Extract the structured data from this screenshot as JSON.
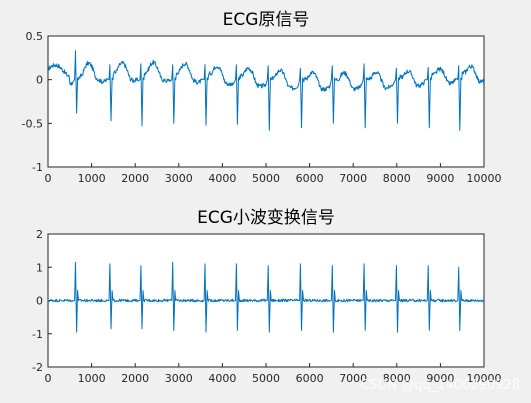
{
  "chart_data": [
    {
      "type": "line",
      "title": "ECG原信号",
      "xlabel": "",
      "ylabel": "",
      "xlim": [
        0,
        10000
      ],
      "ylim": [
        -1,
        0.5
      ],
      "xticks": [
        0,
        1000,
        2000,
        3000,
        4000,
        5000,
        6000,
        7000,
        8000,
        9000,
        10000
      ],
      "xtick_labels": [
        "0",
        "1000",
        "2000",
        "3000",
        "4000",
        "5000",
        "6000",
        "7000",
        "8000",
        "9000",
        "10000"
      ],
      "yticks": [
        0.5,
        0,
        -0.5,
        -1
      ],
      "ytick_labels": [
        "0.5",
        "0",
        "-0.5",
        "-1"
      ],
      "grid": false,
      "color": "#0072bd",
      "beats": [
        {
          "x": 640,
          "r": 0.33,
          "s": -0.38
        },
        {
          "x": 1430,
          "r": 0.17,
          "s": -0.47
        },
        {
          "x": 2140,
          "r": 0.18,
          "s": -0.53
        },
        {
          "x": 2870,
          "r": 0.17,
          "s": -0.5
        },
        {
          "x": 3610,
          "r": 0.17,
          "s": -0.52
        },
        {
          "x": 4330,
          "r": 0.17,
          "s": -0.51
        },
        {
          "x": 5060,
          "r": 0.16,
          "s": -0.58
        },
        {
          "x": 5800,
          "r": 0.13,
          "s": -0.55
        },
        {
          "x": 6530,
          "r": 0.16,
          "s": -0.5
        },
        {
          "x": 7260,
          "r": 0.18,
          "s": -0.55
        },
        {
          "x": 8000,
          "r": 0.13,
          "s": -0.5
        },
        {
          "x": 8730,
          "r": 0.14,
          "s": -0.55
        },
        {
          "x": 9430,
          "r": 0.16,
          "s": -0.58
        }
      ]
    },
    {
      "type": "line",
      "title": "ECG小波变换信号",
      "xlabel": "",
      "ylabel": "",
      "xlim": [
        0,
        10000
      ],
      "ylim": [
        -2,
        2
      ],
      "xticks": [
        0,
        1000,
        2000,
        3000,
        4000,
        5000,
        6000,
        7000,
        8000,
        9000,
        10000
      ],
      "xtick_labels": [
        "0",
        "1000",
        "2000",
        "3000",
        "4000",
        "5000",
        "6000",
        "7000",
        "8000",
        "9000",
        "10000"
      ],
      "yticks": [
        2,
        1,
        0,
        -1,
        -2
      ],
      "ytick_labels": [
        "2",
        "1",
        "0",
        "-1",
        "-2"
      ],
      "grid": false,
      "color": "#0072bd",
      "beats": [
        {
          "x": 640,
          "r": 1.15,
          "s": -0.95
        },
        {
          "x": 1430,
          "r": 1.1,
          "s": -0.85
        },
        {
          "x": 2140,
          "r": 1.05,
          "s": -0.85
        },
        {
          "x": 2870,
          "r": 1.15,
          "s": -0.9
        },
        {
          "x": 3610,
          "r": 1.1,
          "s": -0.95
        },
        {
          "x": 4330,
          "r": 1.1,
          "s": -0.9
        },
        {
          "x": 5060,
          "r": 1.05,
          "s": -0.95
        },
        {
          "x": 5800,
          "r": 1.1,
          "s": -0.9
        },
        {
          "x": 6530,
          "r": 1.05,
          "s": -0.95
        },
        {
          "x": 7260,
          "r": 1.1,
          "s": -0.9
        },
        {
          "x": 8000,
          "r": 1.05,
          "s": -0.95
        },
        {
          "x": 8730,
          "r": 1.05,
          "s": -0.9
        },
        {
          "x": 9430,
          "r": 1.0,
          "s": -0.9
        }
      ]
    }
  ],
  "watermark": "CSDN @qq_1400290928"
}
